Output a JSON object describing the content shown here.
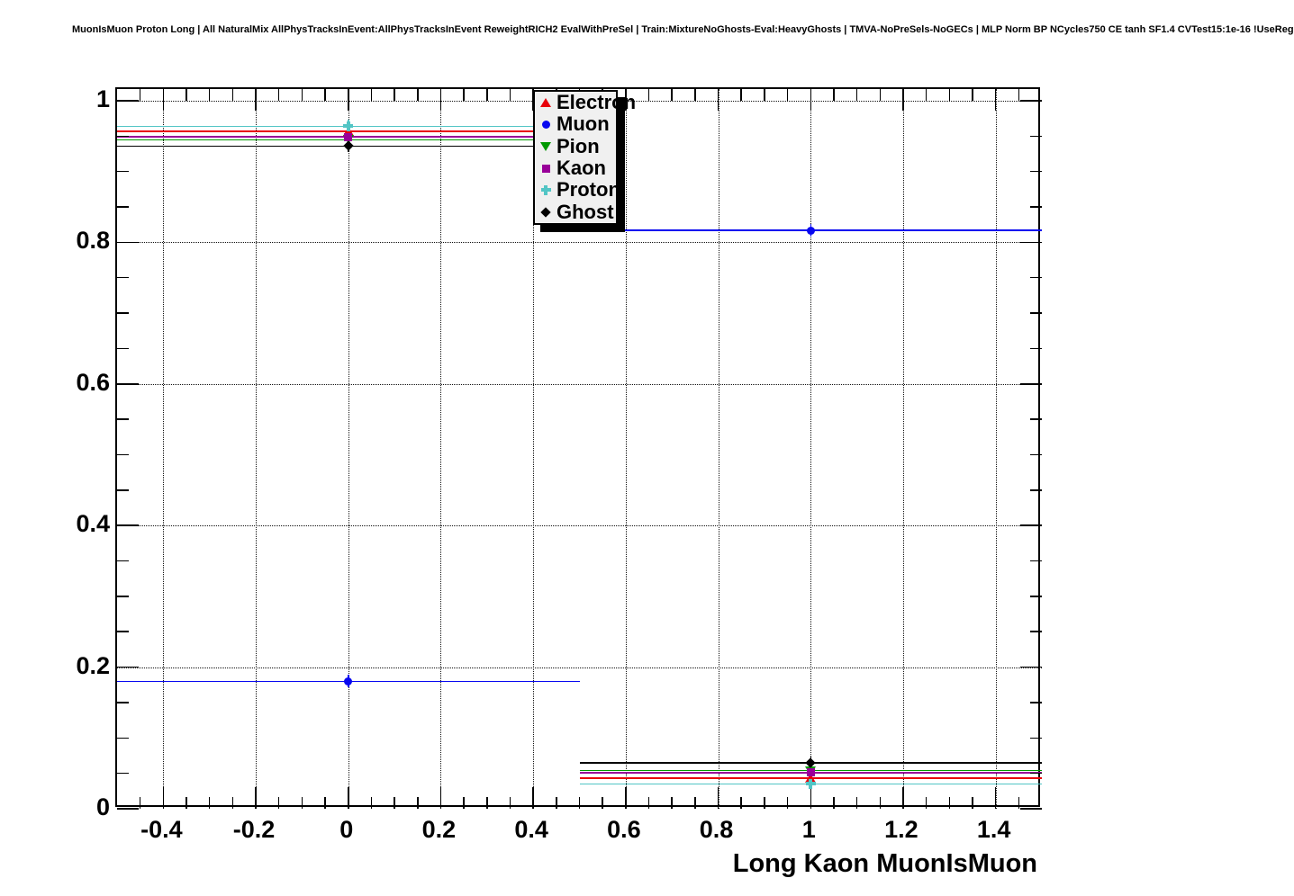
{
  "title": "MuonIsMuon Proton Long | All NaturalMix AllPhysTracksInEvent:AllPhysTracksInEvent ReweightRICH2 EvalWithPreSel | Train:MixtureNoGhosts-Eval:HeavyGhosts | TMVA-NoPreSels-NoGECs | MLP Norm BP NCycles750 CE tanh SF1.4 CVTest15:1e-16 !UseReg",
  "chart_data": {
    "type": "scatter",
    "title": "MuonIsMuon Proton Long | All NaturalMix AllPhysTracksInEvent:AllPhysTracksInEvent ReweightRICH2 EvalWithPreSel | Train:MixtureNoGhosts-Eval:HeavyGhosts | TMVA-NoPreSels-NoGECs | MLP Norm BP NCycles750 CE tanh SF1.4 CVTest15:1e-16 !UseReg",
    "xlabel": "Long Kaon MuonIsMuon",
    "ylabel": "",
    "xlim": [
      -0.5,
      1.5
    ],
    "ylim": [
      0,
      1.0165
    ],
    "x": [
      0,
      1
    ],
    "bin_halfwidth": 0.5,
    "series": [
      {
        "name": "Electron",
        "color": "#e8000a",
        "marker": "triangle-up",
        "values": [
          0.957,
          0.043
        ]
      },
      {
        "name": "Muon",
        "color": "#0808f0",
        "marker": "circle",
        "values": [
          0.18,
          0.817
        ]
      },
      {
        "name": "Pion",
        "color": "#009900",
        "marker": "triangle-down",
        "values": [
          0.945,
          0.054
        ]
      },
      {
        "name": "Kaon",
        "color": "#990099",
        "marker": "square",
        "values": [
          0.949,
          0.051
        ]
      },
      {
        "name": "Proton",
        "color": "#52c5c5",
        "marker": "cross",
        "values": [
          0.964,
          0.035
        ]
      },
      {
        "name": "Ghost",
        "color": "#000000",
        "marker": "diamond",
        "values": [
          0.936,
          0.065
        ]
      }
    ],
    "x_ticks_major": [
      -0.4,
      -0.2,
      0,
      0.2,
      0.4,
      0.6,
      0.8,
      1,
      1.2,
      1.4
    ],
    "x_tick_labels": [
      "-0.4",
      "-0.2",
      "0",
      "0.2",
      "0.4",
      "0.6",
      "0.8",
      "1",
      "1.2",
      "1.4"
    ],
    "x_minor_step": 0.05,
    "y_ticks_major": [
      0,
      0.2,
      0.4,
      0.6,
      0.8,
      1
    ],
    "y_tick_labels": [
      "0",
      "0.2",
      "0.4",
      "0.6",
      "0.8",
      "1"
    ],
    "y_minor_step": 0.05,
    "grid": true,
    "grid_style": "dotted",
    "legend_position": "top-center-inside",
    "legend_entries": [
      "Electron",
      "Muon",
      "Pion",
      "Kaon",
      "Proton",
      "Ghost"
    ]
  },
  "colors": {
    "background": "#ffffff",
    "frame": "#000000",
    "legend_fill": "#f0f0f0",
    "legend_border": "#000000",
    "legend_shadow": "#000000"
  }
}
